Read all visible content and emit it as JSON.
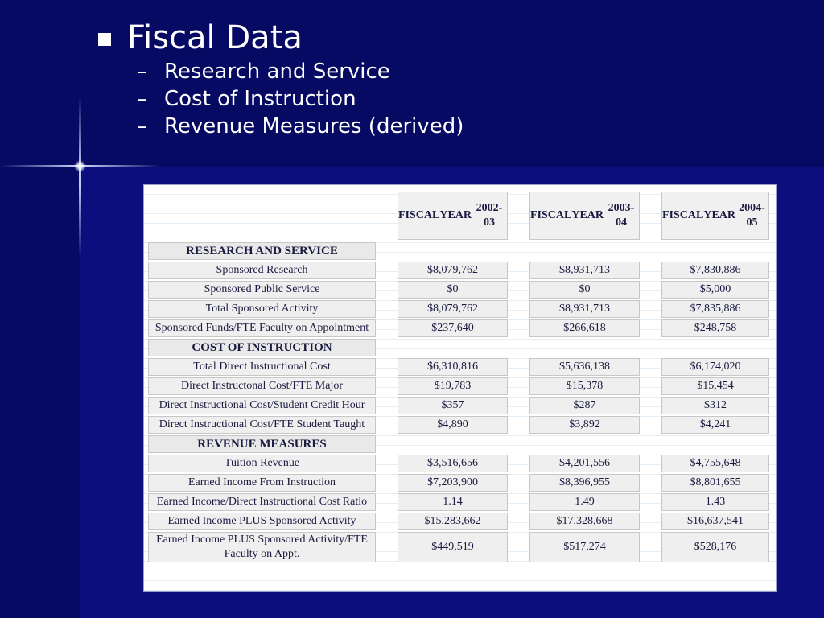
{
  "slide": {
    "title": "Fiscal Data",
    "bullets": [
      "Research and Service",
      "Cost of Instruction",
      "Revenue Measures (derived)"
    ],
    "dash": "–"
  },
  "table": {
    "headers": [
      [
        "FISCAL",
        "YEAR",
        "2002-03"
      ],
      [
        "FISCAL",
        "YEAR",
        "2003-04"
      ],
      [
        "FISCAL",
        "YEAR",
        "2004-05"
      ]
    ],
    "sections": [
      {
        "title": "RESEARCH AND SERVICE",
        "rows": [
          {
            "label": "Sponsored Research",
            "values": [
              "$8,079,762",
              "$8,931,713",
              "$7,830,886"
            ]
          },
          {
            "label": "Sponsored Public Service",
            "values": [
              "$0",
              "$0",
              "$5,000"
            ]
          },
          {
            "label": "Total Sponsored Activity",
            "values": [
              "$8,079,762",
              "$8,931,713",
              "$7,835,886"
            ]
          },
          {
            "label": "Sponsored Funds/FTE Faculty on Appointment",
            "values": [
              "$237,640",
              "$266,618",
              "$248,758"
            ]
          }
        ]
      },
      {
        "title": "COST OF INSTRUCTION",
        "rows": [
          {
            "label": "Total Direct Instructional Cost",
            "values": [
              "$6,310,816",
              "$5,636,138",
              "$6,174,020"
            ]
          },
          {
            "label": "Direct Instructonal Cost/FTE Major",
            "values": [
              "$19,783",
              "$15,378",
              "$15,454"
            ]
          },
          {
            "label": "Direct Instructional Cost/Student Credit Hour",
            "values": [
              "$357",
              "$287",
              "$312"
            ]
          },
          {
            "label": "Direct Instructional Cost/FTE Student Taught",
            "values": [
              "$4,890",
              "$3,892",
              "$4,241"
            ]
          }
        ]
      },
      {
        "title": "REVENUE MEASURES",
        "rows": [
          {
            "label": "Tuition Revenue",
            "values": [
              "$3,516,656",
              "$4,201,556",
              "$4,755,648"
            ]
          },
          {
            "label": "Earned Income From Instruction",
            "values": [
              "$7,203,900",
              "$8,396,955",
              "$8,801,655"
            ]
          },
          {
            "label": "Earned Income/Direct Instructional Cost Ratio",
            "values": [
              "1.14",
              "1.49",
              "1.43"
            ]
          },
          {
            "label": "Earned Income PLUS Sponsored Activity",
            "values": [
              "$15,283,662",
              "$17,328,668",
              "$16,637,541"
            ]
          },
          {
            "label": "Earned Income PLUS Sponsored Activity/FTE Faculty on Appt.",
            "values": [
              "$449,519",
              "$517,274",
              "$528,176"
            ]
          }
        ]
      }
    ]
  }
}
